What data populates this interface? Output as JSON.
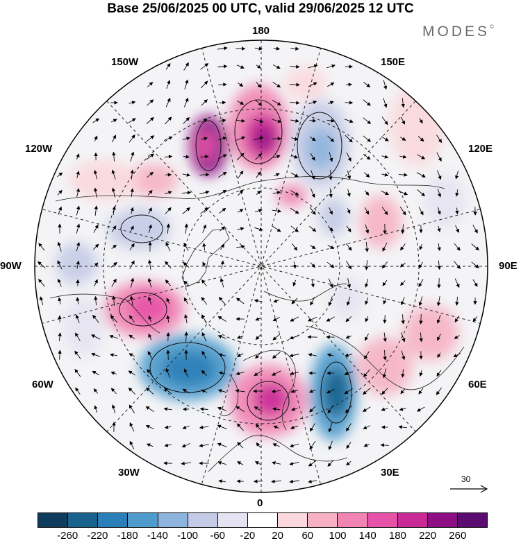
{
  "header": {
    "title": "Base 25/06/2025 00 UTC, valid 29/06/2025 12 UTC",
    "brand": "MODES",
    "brand_mark": "©"
  },
  "map": {
    "projection": "north-polar-stereographic",
    "longitude_labels": {
      "top": "180",
      "bottom": "0",
      "left": "90W",
      "right": "90E",
      "upper_left_1": "150W",
      "upper_left_2": "120W",
      "upper_right_1": "150E",
      "upper_right_2": "120E",
      "lower_left_1": "60W",
      "lower_left_2": "30W",
      "lower_right_1": "60E",
      "lower_right_2": "30E"
    },
    "reference_vector": {
      "value": "30"
    }
  },
  "colorbar": {
    "colors": [
      "#0f3b5c",
      "#19628e",
      "#2b7fb8",
      "#4f9bcc",
      "#8db4dc",
      "#c4cbe6",
      "#e5e3f1",
      "#ffffff",
      "#fad8dd",
      "#f6b1c4",
      "#f184b3",
      "#e552a7",
      "#c92a97",
      "#8e0f83",
      "#5a0c70"
    ],
    "ticks": [
      "-260",
      "-220",
      "-180",
      "-140",
      "-100",
      "-60",
      "-20",
      "20",
      "60",
      "100",
      "140",
      "180",
      "220",
      "260"
    ]
  }
}
